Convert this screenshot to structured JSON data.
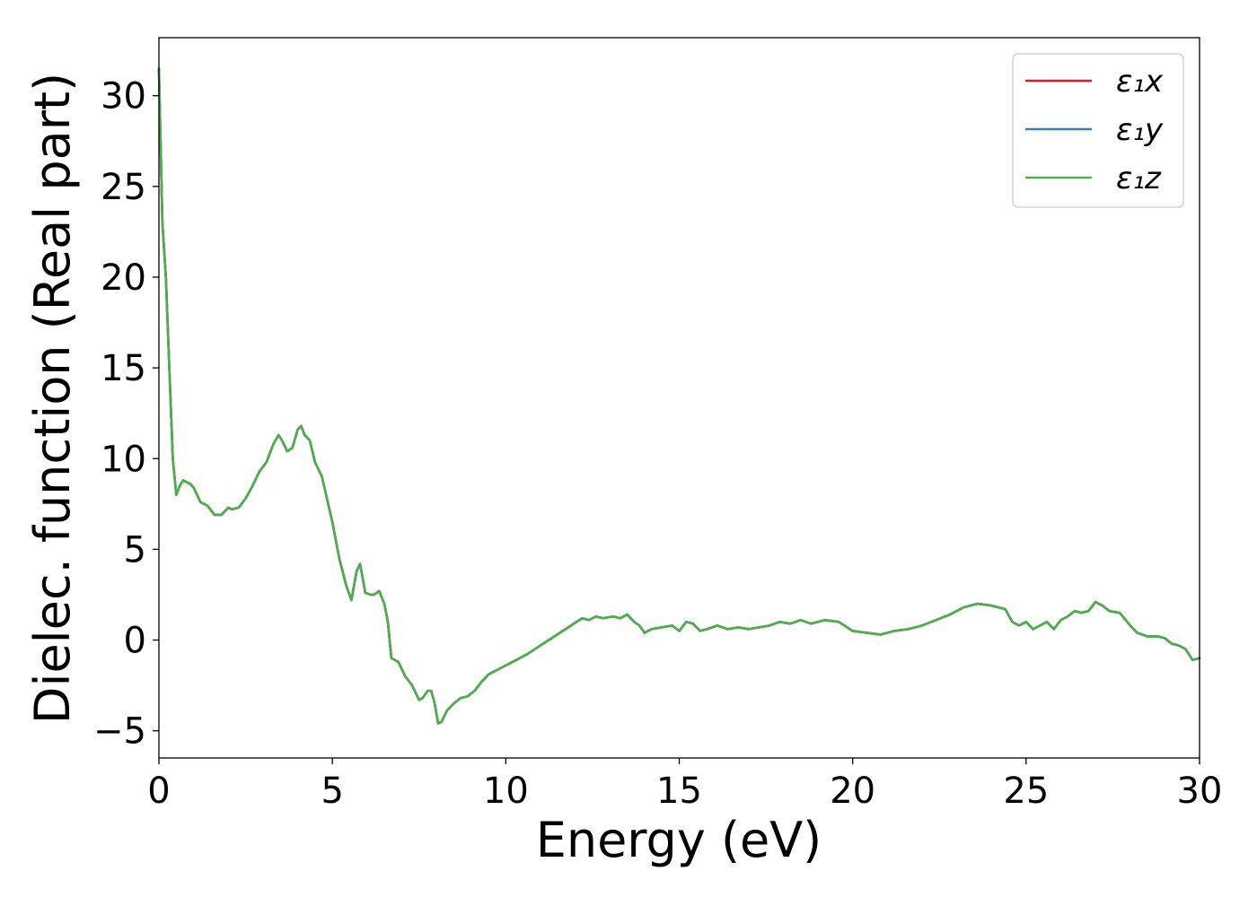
{
  "chart_data": {
    "type": "line",
    "xlabel": "Energy (eV)",
    "ylabel": "Dielec. function (Real part)",
    "xlim": [
      0,
      30
    ],
    "ylim": [
      -6.5,
      33.2
    ],
    "xticks": [
      0,
      5,
      10,
      15,
      20,
      25,
      30
    ],
    "yticks": [
      -5,
      0,
      5,
      10,
      15,
      20,
      25,
      30
    ],
    "ytick_labels": [
      "−5",
      "0",
      "5",
      "10",
      "15",
      "20",
      "25",
      "30"
    ],
    "grid": false,
    "legend_position": "top-right",
    "x": [
      0.0,
      0.1,
      0.2,
      0.3,
      0.4,
      0.5,
      0.6,
      0.7,
      0.8,
      0.9,
      1.0,
      1.1,
      1.2,
      1.3,
      1.4,
      1.6,
      1.8,
      2.0,
      2.1,
      2.3,
      2.5,
      2.7,
      2.9,
      3.1,
      3.3,
      3.45,
      3.55,
      3.7,
      3.85,
      4.0,
      4.1,
      4.2,
      4.35,
      4.5,
      4.7,
      5.0,
      5.2,
      5.4,
      5.55,
      5.7,
      5.8,
      5.95,
      6.1,
      6.2,
      6.35,
      6.5,
      6.6,
      6.7,
      6.9,
      7.1,
      7.3,
      7.5,
      7.6,
      7.75,
      7.85,
      7.95,
      8.05,
      8.15,
      8.3,
      8.5,
      8.7,
      8.9,
      9.1,
      9.3,
      9.5,
      9.8,
      10.2,
      10.6,
      11.0,
      11.4,
      11.8,
      12.2,
      12.4,
      12.6,
      12.8,
      13.1,
      13.3,
      13.5,
      13.7,
      13.85,
      14.0,
      14.2,
      14.5,
      14.8,
      15.0,
      15.2,
      15.4,
      15.6,
      15.8,
      16.1,
      16.4,
      16.7,
      17.0,
      17.3,
      17.6,
      17.9,
      18.2,
      18.5,
      18.8,
      19.2,
      19.6,
      20.0,
      20.4,
      20.8,
      21.2,
      21.6,
      22.0,
      22.4,
      22.8,
      23.2,
      23.6,
      24.0,
      24.4,
      24.6,
      24.8,
      25.0,
      25.2,
      25.4,
      25.6,
      25.8,
      26.0,
      26.2,
      26.4,
      26.6,
      26.8,
      27.0,
      27.2,
      27.4,
      27.7,
      28.0,
      28.2,
      28.5,
      28.8,
      29.0,
      29.2,
      29.4,
      29.6,
      29.8,
      30.0
    ],
    "series": [
      {
        "name": "ε₁x",
        "color": "#e41a1c",
        "values": [
          31.5,
          23.0,
          20.0,
          15.0,
          10.0,
          8.0,
          8.5,
          8.8,
          8.7,
          8.6,
          8.4,
          8.0,
          7.6,
          7.5,
          7.4,
          6.9,
          6.9,
          7.3,
          7.2,
          7.3,
          7.8,
          8.5,
          9.3,
          9.8,
          10.8,
          11.3,
          11.0,
          10.4,
          10.6,
          11.6,
          11.8,
          11.3,
          11.0,
          9.8,
          9.0,
          6.5,
          4.5,
          3.0,
          2.2,
          3.8,
          4.2,
          2.6,
          2.5,
          2.5,
          2.7,
          2.0,
          1.0,
          -1.0,
          -1.2,
          -2.0,
          -2.5,
          -3.3,
          -3.2,
          -2.8,
          -2.8,
          -3.5,
          -4.6,
          -4.5,
          -3.9,
          -3.5,
          -3.2,
          -3.1,
          -2.8,
          -2.3,
          -1.9,
          -1.6,
          -1.2,
          -0.8,
          -0.3,
          0.2,
          0.7,
          1.2,
          1.1,
          1.3,
          1.2,
          1.3,
          1.2,
          1.4,
          1.0,
          0.8,
          0.4,
          0.6,
          0.7,
          0.8,
          0.5,
          1.0,
          0.9,
          0.5,
          0.6,
          0.8,
          0.6,
          0.7,
          0.6,
          0.7,
          0.8,
          1.0,
          0.9,
          1.1,
          0.9,
          1.1,
          1.0,
          0.5,
          0.4,
          0.3,
          0.5,
          0.6,
          0.8,
          1.1,
          1.4,
          1.8,
          2.0,
          1.9,
          1.7,
          1.0,
          0.8,
          1.0,
          0.6,
          0.8,
          1.0,
          0.6,
          1.1,
          1.3,
          1.6,
          1.5,
          1.6,
          2.1,
          1.9,
          1.6,
          1.5,
          0.8,
          0.4,
          0.2,
          0.2,
          0.1,
          -0.2,
          -0.3,
          -0.5,
          -1.1,
          -1.0
        ]
      },
      {
        "name": "ε₁y",
        "color": "#377eb8",
        "values": [
          31.5,
          23.0,
          20.0,
          15.0,
          10.0,
          8.0,
          8.5,
          8.8,
          8.7,
          8.6,
          8.4,
          8.0,
          7.6,
          7.5,
          7.4,
          6.9,
          6.9,
          7.3,
          7.2,
          7.3,
          7.8,
          8.5,
          9.3,
          9.8,
          10.8,
          11.3,
          11.0,
          10.4,
          10.6,
          11.6,
          11.8,
          11.3,
          11.0,
          9.8,
          9.0,
          6.5,
          4.5,
          3.0,
          2.2,
          3.8,
          4.2,
          2.6,
          2.5,
          2.5,
          2.7,
          2.0,
          1.0,
          -1.0,
          -1.2,
          -2.0,
          -2.5,
          -3.3,
          -3.2,
          -2.8,
          -2.8,
          -3.5,
          -4.6,
          -4.5,
          -3.9,
          -3.5,
          -3.2,
          -3.1,
          -2.8,
          -2.3,
          -1.9,
          -1.6,
          -1.2,
          -0.8,
          -0.3,
          0.2,
          0.7,
          1.2,
          1.1,
          1.3,
          1.2,
          1.3,
          1.2,
          1.4,
          1.0,
          0.8,
          0.4,
          0.6,
          0.7,
          0.8,
          0.5,
          1.0,
          0.9,
          0.5,
          0.6,
          0.8,
          0.6,
          0.7,
          0.6,
          0.7,
          0.8,
          1.0,
          0.9,
          1.1,
          0.9,
          1.1,
          1.0,
          0.5,
          0.4,
          0.3,
          0.5,
          0.6,
          0.8,
          1.1,
          1.4,
          1.8,
          2.0,
          1.9,
          1.7,
          1.0,
          0.8,
          1.0,
          0.6,
          0.8,
          1.0,
          0.6,
          1.1,
          1.3,
          1.6,
          1.5,
          1.6,
          2.1,
          1.9,
          1.6,
          1.5,
          0.8,
          0.4,
          0.2,
          0.2,
          0.1,
          -0.2,
          -0.3,
          -0.5,
          -1.1,
          -1.0
        ]
      },
      {
        "name": "ε₁z",
        "color": "#4daf4a",
        "values": [
          31.5,
          23.0,
          20.0,
          15.0,
          10.0,
          8.0,
          8.5,
          8.8,
          8.7,
          8.6,
          8.4,
          8.0,
          7.6,
          7.5,
          7.4,
          6.9,
          6.9,
          7.3,
          7.2,
          7.3,
          7.8,
          8.5,
          9.3,
          9.8,
          10.8,
          11.3,
          11.0,
          10.4,
          10.6,
          11.6,
          11.8,
          11.3,
          11.0,
          9.8,
          9.0,
          6.5,
          4.5,
          3.0,
          2.2,
          3.8,
          4.2,
          2.6,
          2.5,
          2.5,
          2.7,
          2.0,
          1.0,
          -1.0,
          -1.2,
          -2.0,
          -2.5,
          -3.3,
          -3.2,
          -2.8,
          -2.8,
          -3.5,
          -4.6,
          -4.5,
          -3.9,
          -3.5,
          -3.2,
          -3.1,
          -2.8,
          -2.3,
          -1.9,
          -1.6,
          -1.2,
          -0.8,
          -0.3,
          0.2,
          0.7,
          1.2,
          1.1,
          1.3,
          1.2,
          1.3,
          1.2,
          1.4,
          1.0,
          0.8,
          0.4,
          0.6,
          0.7,
          0.8,
          0.5,
          1.0,
          0.9,
          0.5,
          0.6,
          0.8,
          0.6,
          0.7,
          0.6,
          0.7,
          0.8,
          1.0,
          0.9,
          1.1,
          0.9,
          1.1,
          1.0,
          0.5,
          0.4,
          0.3,
          0.5,
          0.6,
          0.8,
          1.1,
          1.4,
          1.8,
          2.0,
          1.9,
          1.7,
          1.0,
          0.8,
          1.0,
          0.6,
          0.8,
          1.0,
          0.6,
          1.1,
          1.3,
          1.6,
          1.5,
          1.6,
          2.1,
          1.9,
          1.6,
          1.5,
          0.8,
          0.4,
          0.2,
          0.2,
          0.1,
          -0.2,
          -0.3,
          -0.5,
          -1.1,
          -1.0
        ]
      }
    ]
  }
}
